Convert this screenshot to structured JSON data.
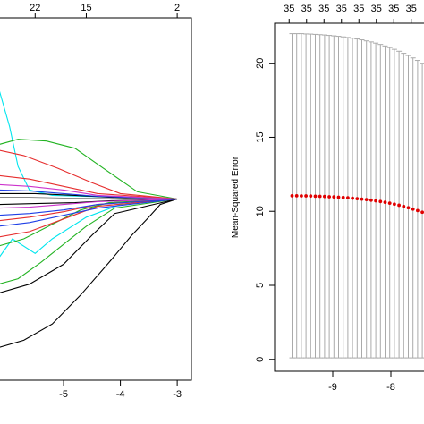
{
  "chart_data": [
    {
      "type": "line",
      "panel": "left",
      "top_axis_labels": [
        "22",
        "15",
        "2"
      ],
      "top_axis_values": [
        -5.5,
        -4.6,
        -3.0
      ],
      "x_ticks": [
        "-5",
        "-4",
        "-3"
      ],
      "x_tick_values": [
        -5,
        -4,
        -3
      ],
      "xlim": [
        -6.15,
        -2.75
      ],
      "ylim": [
        -1.0,
        1.0
      ],
      "converge_x": -3.0,
      "converge_y": 0.0,
      "series": [
        {
          "color": "#00e5ee",
          "values": [
            [
              -6.15,
              0.62
            ],
            [
              -5.95,
              0.4
            ],
            [
              -5.8,
              0.18
            ],
            [
              -5.6,
              0.05
            ],
            [
              -5.2,
              0.02
            ],
            [
              -3.0,
              0.0
            ]
          ]
        },
        {
          "color": "#00e5ee",
          "values": [
            [
              -6.15,
              -0.33
            ],
            [
              -5.9,
              -0.22
            ],
            [
              -5.5,
              -0.3
            ],
            [
              -5.2,
              -0.22
            ],
            [
              -4.6,
              -0.1
            ],
            [
              -4.0,
              -0.03
            ],
            [
              -3.0,
              0.0
            ]
          ]
        },
        {
          "color": "#22b322",
          "values": [
            [
              -6.15,
              0.3
            ],
            [
              -5.8,
              0.33
            ],
            [
              -5.3,
              0.32
            ],
            [
              -4.8,
              0.28
            ],
            [
              -4.3,
              0.17
            ],
            [
              -3.7,
              0.04
            ],
            [
              -3.0,
              0.0
            ]
          ]
        },
        {
          "color": "#22b322",
          "values": [
            [
              -6.15,
              -0.47
            ],
            [
              -5.8,
              -0.44
            ],
            [
              -5.4,
              -0.35
            ],
            [
              -5.0,
              -0.25
            ],
            [
              -4.6,
              -0.15
            ],
            [
              -4.1,
              -0.05
            ],
            [
              -3.0,
              0.0
            ]
          ]
        },
        {
          "color": "#22b322",
          "values": [
            [
              -6.15,
              -0.26
            ],
            [
              -5.7,
              -0.22
            ],
            [
              -5.2,
              -0.14
            ],
            [
              -4.7,
              -0.06
            ],
            [
              -4.2,
              -0.02
            ],
            [
              -3.0,
              0.0
            ]
          ]
        },
        {
          "color": "#e62e2e",
          "values": [
            [
              -6.15,
              0.27
            ],
            [
              -5.7,
              0.24
            ],
            [
              -5.1,
              0.17
            ],
            [
              -4.5,
              0.09
            ],
            [
              -4.0,
              0.03
            ],
            [
              -3.0,
              0.0
            ]
          ]
        },
        {
          "color": "#e62e2e",
          "values": [
            [
              -6.15,
              0.13
            ],
            [
              -5.6,
              0.11
            ],
            [
              -5.0,
              0.07
            ],
            [
              -4.4,
              0.03
            ],
            [
              -3.0,
              0.0
            ]
          ]
        },
        {
          "color": "#e62e2e",
          "values": [
            [
              -6.15,
              -0.12
            ],
            [
              -5.6,
              -0.1
            ],
            [
              -5.0,
              -0.07
            ],
            [
              -4.4,
              -0.03
            ],
            [
              -3.0,
              0.0
            ]
          ]
        },
        {
          "color": "#e62e2e",
          "values": [
            [
              -6.15,
              -0.21
            ],
            [
              -5.6,
              -0.18
            ],
            [
              -5.0,
              -0.11
            ],
            [
              -4.4,
              -0.04
            ],
            [
              -3.0,
              0.0
            ]
          ]
        },
        {
          "color": "#000000",
          "values": [
            [
              -6.15,
              -0.82
            ],
            [
              -5.7,
              -0.78
            ],
            [
              -5.2,
              -0.69
            ],
            [
              -4.7,
              -0.53
            ],
            [
              -4.2,
              -0.35
            ],
            [
              -3.8,
              -0.2
            ],
            [
              -3.5,
              -0.1
            ],
            [
              -3.3,
              -0.03
            ],
            [
              -3.0,
              0.0
            ]
          ]
        },
        {
          "color": "#000000",
          "values": [
            [
              -6.15,
              -0.52
            ],
            [
              -5.6,
              -0.47
            ],
            [
              -5.0,
              -0.36
            ],
            [
              -4.5,
              -0.2
            ],
            [
              -4.1,
              -0.08
            ],
            [
              -3.0,
              0.0
            ]
          ]
        },
        {
          "color": "#000000",
          "values": [
            [
              -6.15,
              0.03
            ],
            [
              -5.5,
              0.03
            ],
            [
              -4.8,
              0.02
            ],
            [
              -4.2,
              0.01
            ],
            [
              -3.0,
              0.0
            ]
          ]
        },
        {
          "color": "#000000",
          "values": [
            [
              -6.15,
              -0.03
            ],
            [
              -5.5,
              -0.025
            ],
            [
              -4.8,
              -0.02
            ],
            [
              -4.2,
              -0.01
            ],
            [
              -3.0,
              0.0
            ]
          ]
        },
        {
          "color": "#1f3fe6",
          "values": [
            [
              -6.15,
              -0.09
            ],
            [
              -5.6,
              -0.08
            ],
            [
              -5.0,
              -0.06
            ],
            [
              -4.4,
              -0.03
            ],
            [
              -3.0,
              0.0
            ]
          ]
        },
        {
          "color": "#1f3fe6",
          "values": [
            [
              -6.15,
              -0.15
            ],
            [
              -5.6,
              -0.13
            ],
            [
              -5.0,
              -0.09
            ],
            [
              -4.4,
              -0.05
            ],
            [
              -3.0,
              0.0
            ]
          ]
        },
        {
          "color": "#1f3fe6",
          "values": [
            [
              -6.15,
              0.05
            ],
            [
              -5.6,
              0.045
            ],
            [
              -5.0,
              0.03
            ],
            [
              -4.4,
              0.015
            ],
            [
              -3.0,
              0.0
            ]
          ]
        },
        {
          "color": "#cc33cc",
          "values": [
            [
              -6.15,
              -0.05
            ],
            [
              -5.6,
              -0.045
            ],
            [
              -5.0,
              -0.03
            ],
            [
              -4.4,
              -0.015
            ],
            [
              -3.0,
              0.0
            ]
          ]
        },
        {
          "color": "#cc33cc",
          "values": [
            [
              -6.15,
              0.08
            ],
            [
              -5.6,
              0.07
            ],
            [
              -5.0,
              0.05
            ],
            [
              -4.4,
              0.02
            ],
            [
              -3.0,
              0.0
            ]
          ]
        },
        {
          "color": "#888888",
          "values": [
            [
              -6.15,
              0.01
            ],
            [
              -5.6,
              0.01
            ],
            [
              -5.0,
              0.005
            ],
            [
              -3.0,
              0.0
            ]
          ]
        }
      ]
    },
    {
      "type": "scatter",
      "panel": "right",
      "ylabel": "Mean-Squared Error",
      "top_axis_labels": [
        "35",
        "35",
        "35",
        "35",
        "35",
        "35",
        "35",
        "35"
      ],
      "top_axis_values": [
        -9.75,
        -9.45,
        -9.15,
        -8.85,
        -8.55,
        -8.25,
        -7.95,
        -7.65
      ],
      "x_ticks": [
        "-9",
        "-8"
      ],
      "x_tick_values": [
        -9,
        -8
      ],
      "y_ticks": [
        "0",
        "5",
        "10",
        "15",
        "20"
      ],
      "y_tick_values": [
        0,
        5,
        10,
        15,
        20
      ],
      "xlim": [
        -10.0,
        -7.4
      ],
      "ylim": [
        -0.8,
        22.7
      ],
      "point_color": "#e00000",
      "error_bar_color": "#aaaaaa",
      "points": [
        {
          "x": -9.7,
          "y": 11.05,
          "lo": 0.1,
          "hi": 22.0
        },
        {
          "x": -9.62,
          "y": 11.05,
          "lo": 0.1,
          "hi": 22.0
        },
        {
          "x": -9.54,
          "y": 11.04,
          "lo": 0.1,
          "hi": 22.0
        },
        {
          "x": -9.46,
          "y": 11.04,
          "lo": 0.1,
          "hi": 21.98
        },
        {
          "x": -9.38,
          "y": 11.03,
          "lo": 0.1,
          "hi": 21.97
        },
        {
          "x": -9.3,
          "y": 11.02,
          "lo": 0.1,
          "hi": 21.95
        },
        {
          "x": -9.22,
          "y": 11.01,
          "lo": 0.1,
          "hi": 21.93
        },
        {
          "x": -9.14,
          "y": 11.0,
          "lo": 0.1,
          "hi": 21.91
        },
        {
          "x": -9.06,
          "y": 10.98,
          "lo": 0.1,
          "hi": 21.88
        },
        {
          "x": -8.98,
          "y": 10.97,
          "lo": 0.1,
          "hi": 21.85
        },
        {
          "x": -8.9,
          "y": 10.95,
          "lo": 0.1,
          "hi": 21.82
        },
        {
          "x": -8.82,
          "y": 10.93,
          "lo": 0.1,
          "hi": 21.78
        },
        {
          "x": -8.74,
          "y": 10.91,
          "lo": 0.1,
          "hi": 21.74
        },
        {
          "x": -8.66,
          "y": 10.88,
          "lo": 0.1,
          "hi": 21.69
        },
        {
          "x": -8.58,
          "y": 10.85,
          "lo": 0.1,
          "hi": 21.64
        },
        {
          "x": -8.5,
          "y": 10.82,
          "lo": 0.1,
          "hi": 21.58
        },
        {
          "x": -8.42,
          "y": 10.79,
          "lo": 0.1,
          "hi": 21.51
        },
        {
          "x": -8.34,
          "y": 10.75,
          "lo": 0.1,
          "hi": 21.44
        },
        {
          "x": -8.26,
          "y": 10.71,
          "lo": 0.1,
          "hi": 21.36
        },
        {
          "x": -8.18,
          "y": 10.66,
          "lo": 0.1,
          "hi": 21.27
        },
        {
          "x": -8.1,
          "y": 10.61,
          "lo": 0.1,
          "hi": 21.17
        },
        {
          "x": -8.02,
          "y": 10.55,
          "lo": 0.1,
          "hi": 21.06
        },
        {
          "x": -7.94,
          "y": 10.48,
          "lo": 0.1,
          "hi": 20.94
        },
        {
          "x": -7.86,
          "y": 10.41,
          "lo": 0.1,
          "hi": 20.81
        },
        {
          "x": -7.78,
          "y": 10.33,
          "lo": 0.1,
          "hi": 20.67
        },
        {
          "x": -7.7,
          "y": 10.24,
          "lo": 0.1,
          "hi": 20.52
        },
        {
          "x": -7.62,
          "y": 10.15,
          "lo": 0.1,
          "hi": 20.36
        },
        {
          "x": -7.54,
          "y": 10.05,
          "lo": 0.1,
          "hi": 20.19
        },
        {
          "x": -7.46,
          "y": 9.94,
          "lo": 0.1,
          "hi": 20.0
        }
      ]
    }
  ]
}
